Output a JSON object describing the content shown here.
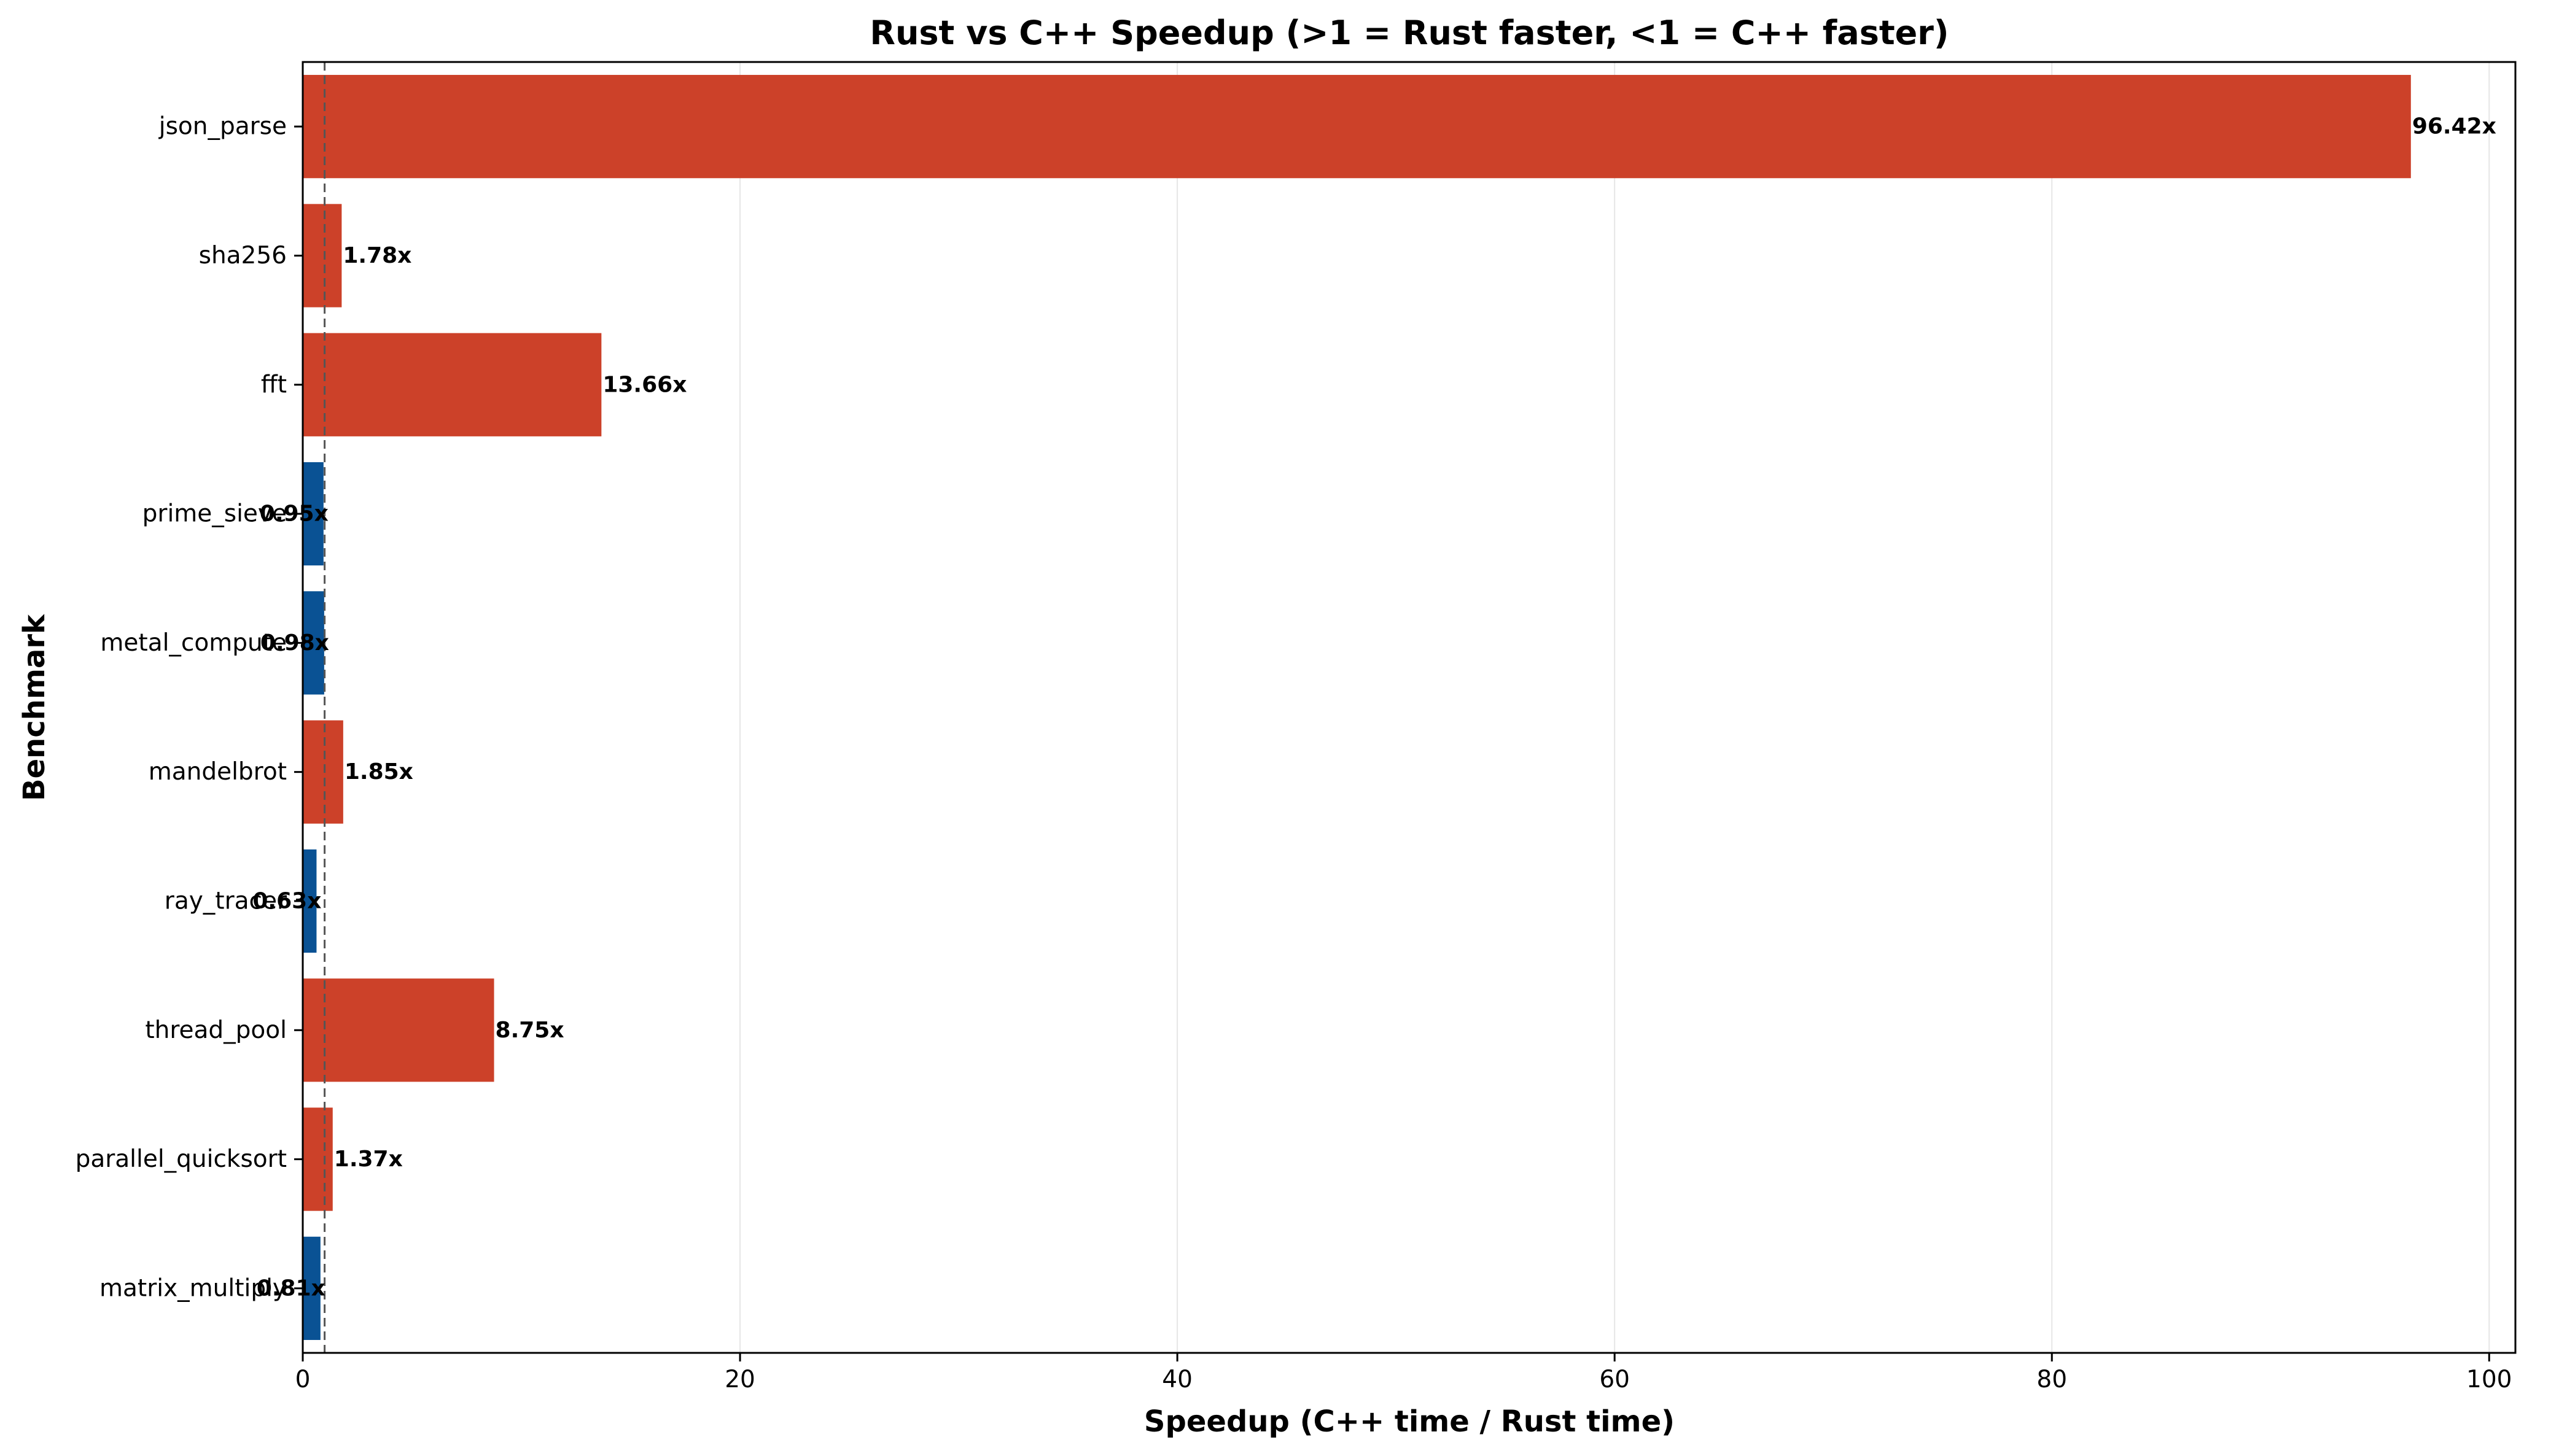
{
  "chart_data": {
    "type": "bar",
    "orientation": "horizontal",
    "title": "Rust vs C++ Speedup (>1 = Rust faster, <1 = C++ faster)",
    "xlabel": "Speedup (C++ time / Rust time)",
    "ylabel": "Benchmark",
    "xlim": [
      0,
      101.2
    ],
    "xticks": [
      0,
      20,
      40,
      60,
      80,
      100
    ],
    "grid": "vertical",
    "reference_line": 1.0,
    "categories": [
      "json_parse",
      "sha256",
      "fft",
      "prime_sieve",
      "metal_compute",
      "mandelbrot",
      "ray_tracer",
      "thread_pool",
      "parallel_quicksort",
      "matrix_multiply"
    ],
    "values": [
      96.42,
      1.78,
      13.66,
      0.95,
      0.98,
      1.85,
      0.63,
      8.75,
      1.37,
      0.81
    ],
    "value_labels": [
      "96.42x",
      "1.78x",
      "13.66x",
      "0.95x",
      "0.98x",
      "1.85x",
      "0.63x",
      "8.75x",
      "1.37x",
      "0.81x"
    ],
    "colors": {
      "rust_faster": "#cc4129",
      "cpp_faster": "#0a5294",
      "grid": "#e6e6e6",
      "reference_line": "#555555"
    }
  }
}
